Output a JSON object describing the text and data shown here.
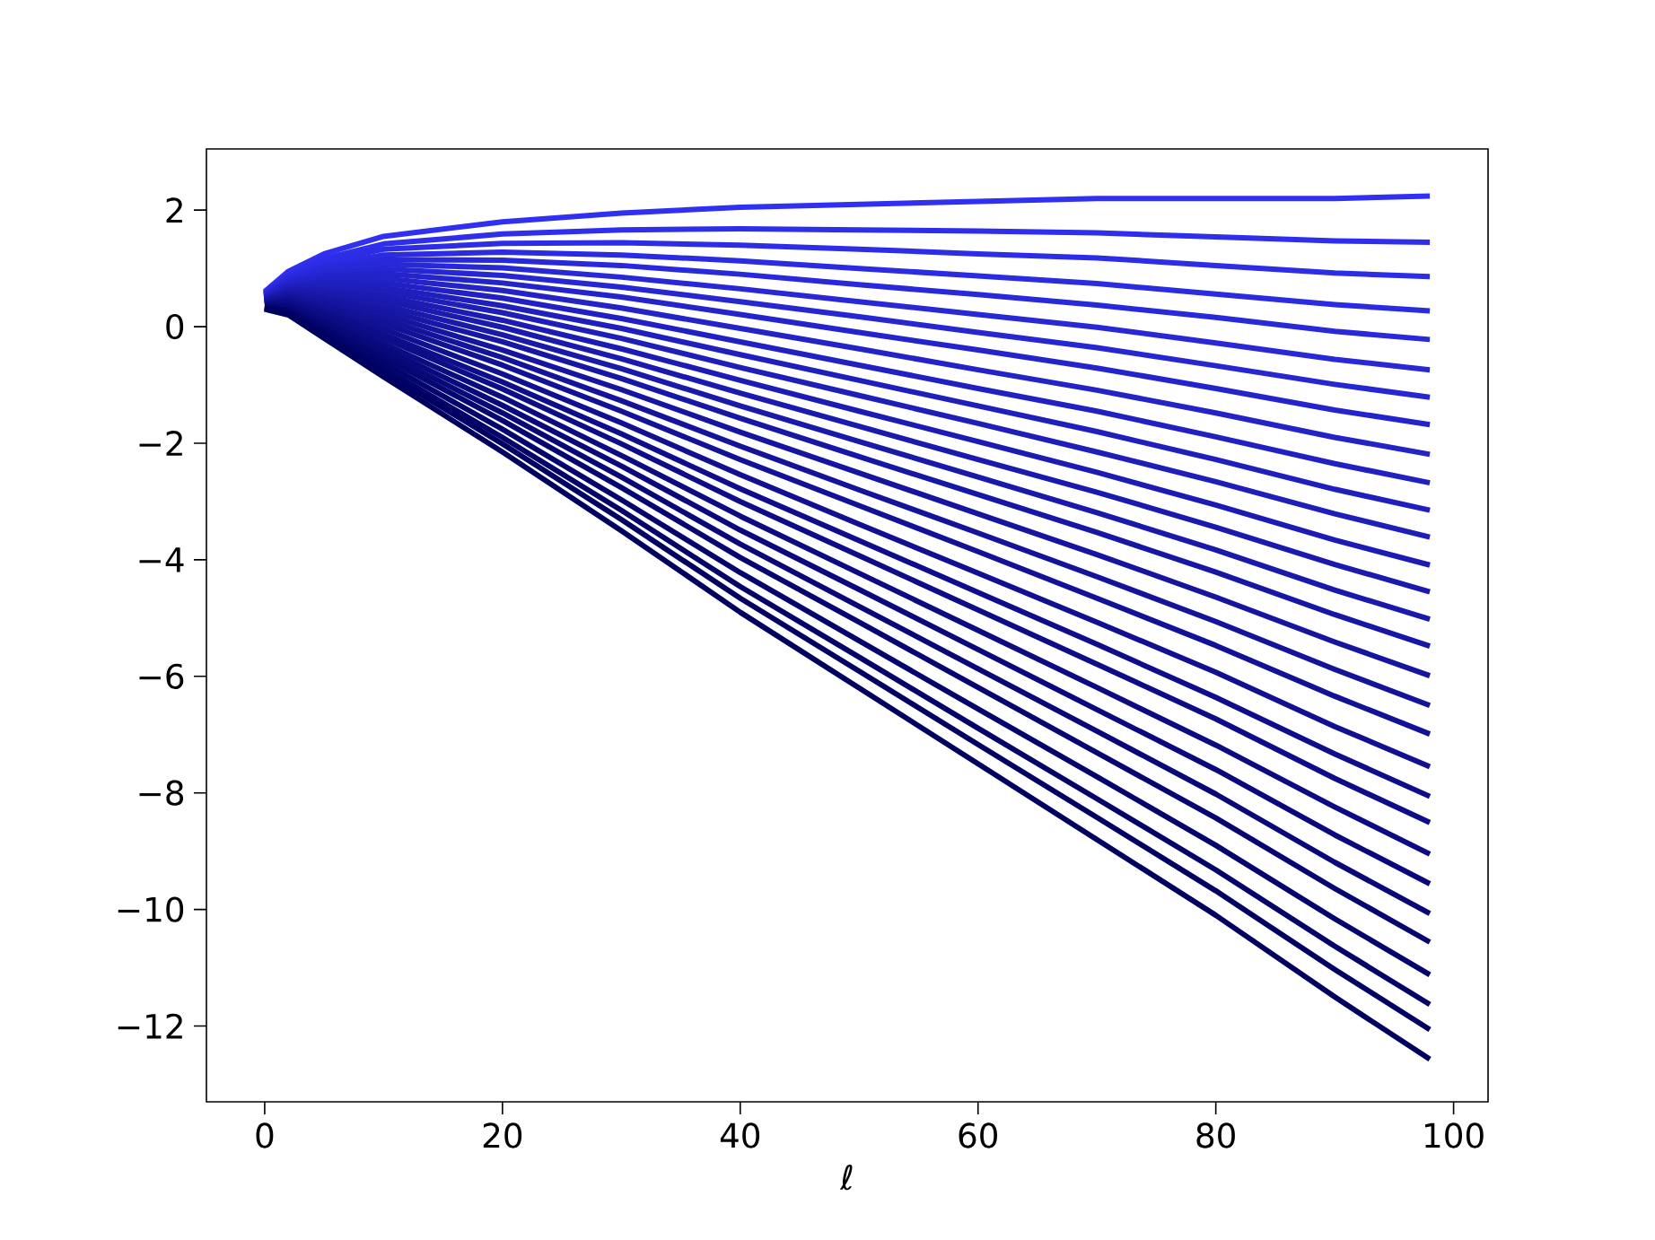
{
  "chart_data": {
    "type": "line",
    "xlabel": "ℓ",
    "x": [
      0,
      2,
      5,
      10,
      20,
      30,
      40,
      50,
      60,
      70,
      80,
      90,
      98
    ],
    "xlim": [
      -4.9,
      102.9
    ],
    "ylim": [
      -13.3,
      3.05
    ],
    "xticks": [
      0,
      20,
      40,
      60,
      80,
      100
    ],
    "yticks": [
      {
        "value": -12,
        "label": "−12"
      },
      {
        "value": -10,
        "label": "−10"
      },
      {
        "value": -8,
        "label": "−8"
      },
      {
        "value": -6,
        "label": "−6"
      },
      {
        "value": -4,
        "label": "−4"
      },
      {
        "value": -2,
        "label": "−2"
      },
      0,
      2
    ],
    "marker": "none",
    "line_style": "solid",
    "series": [
      {
        "color": "#3030f0",
        "values": [
          0.6,
          0.95,
          1.25,
          1.55,
          1.8,
          1.95,
          2.05,
          2.1,
          2.15,
          2.2,
          2.2,
          2.2,
          2.24
        ]
      },
      {
        "color": "#2e2eeb",
        "values": [
          0.58,
          0.91,
          1.17,
          1.42,
          1.59,
          1.66,
          1.68,
          1.66,
          1.64,
          1.61,
          1.54,
          1.47,
          1.45
        ]
      },
      {
        "color": "#2d2de6",
        "values": [
          0.57,
          0.88,
          1.12,
          1.33,
          1.43,
          1.44,
          1.4,
          1.33,
          1.25,
          1.18,
          1.05,
          0.92,
          0.86
        ]
      },
      {
        "color": "#2b2be1",
        "values": [
          0.56,
          0.85,
          1.06,
          1.23,
          1.28,
          1.23,
          1.13,
          1.0,
          0.87,
          0.74,
          0.56,
          0.38,
          0.27
        ]
      },
      {
        "color": "#2929dc",
        "values": [
          0.55,
          0.83,
          1.01,
          1.15,
          1.14,
          1.05,
          0.9,
          0.72,
          0.55,
          0.37,
          0.16,
          -0.08,
          -0.22
        ]
      },
      {
        "color": "#2828d7",
        "values": [
          0.54,
          0.8,
          0.96,
          1.07,
          1.01,
          0.85,
          0.65,
          0.43,
          0.21,
          -0.01,
          -0.28,
          -0.56,
          -0.74
        ]
      },
      {
        "color": "#2626d2",
        "values": [
          0.53,
          0.78,
          0.91,
          0.99,
          0.88,
          0.68,
          0.43,
          0.17,
          -0.1,
          -0.36,
          -0.67,
          -0.99,
          -1.21
        ]
      },
      {
        "color": "#2424cd",
        "values": [
          0.52,
          0.75,
          0.87,
          0.91,
          0.75,
          0.51,
          0.21,
          -0.1,
          -0.4,
          -0.71,
          -1.06,
          -1.43,
          -1.68
        ]
      },
      {
        "color": "#2323c8",
        "values": [
          0.51,
          0.73,
          0.82,
          0.83,
          0.62,
          0.32,
          -0.03,
          -0.38,
          -0.74,
          -1.09,
          -1.48,
          -1.9,
          -2.19
        ]
      },
      {
        "color": "#2121c3",
        "values": [
          0.5,
          0.7,
          0.77,
          0.75,
          0.49,
          0.14,
          -0.26,
          -0.66,
          -1.06,
          -1.45,
          -1.89,
          -2.35,
          -2.68
        ]
      },
      {
        "color": "#1f1fbe",
        "values": [
          0.49,
          0.68,
          0.72,
          0.67,
          0.36,
          -0.03,
          -0.48,
          -0.92,
          -1.36,
          -1.8,
          -2.28,
          -2.79,
          -3.15
        ]
      },
      {
        "color": "#1e1eb9",
        "values": [
          0.48,
          0.65,
          0.68,
          0.6,
          0.24,
          -0.2,
          -0.7,
          -1.18,
          -1.66,
          -2.15,
          -2.66,
          -3.21,
          -3.61
        ]
      },
      {
        "color": "#1c1cb4",
        "values": [
          0.47,
          0.63,
          0.63,
          0.52,
          0.11,
          -0.38,
          -0.92,
          -1.45,
          -1.97,
          -2.5,
          -3.06,
          -3.66,
          -4.09
        ]
      },
      {
        "color": "#1a1aaf",
        "values": [
          0.46,
          0.61,
          0.59,
          0.45,
          -0.01,
          -0.55,
          -1.14,
          -1.71,
          -2.28,
          -2.84,
          -3.44,
          -4.08,
          -4.55
        ]
      },
      {
        "color": "#1919aa",
        "values": [
          0.45,
          0.58,
          0.54,
          0.37,
          -0.14,
          -0.72,
          -1.36,
          -1.97,
          -2.58,
          -3.19,
          -3.83,
          -4.52,
          -5.02
        ]
      },
      {
        "color": "#1717a5",
        "values": [
          0.44,
          0.56,
          0.49,
          0.29,
          -0.26,
          -0.89,
          -1.57,
          -2.23,
          -2.88,
          -3.53,
          -4.21,
          -4.94,
          -5.48
        ]
      },
      {
        "color": "#1515a0",
        "values": [
          0.43,
          0.53,
          0.44,
          0.21,
          -0.4,
          -1.08,
          -1.81,
          -2.51,
          -3.21,
          -3.91,
          -4.64,
          -5.41,
          -5.99
        ]
      },
      {
        "color": "#14149b",
        "values": [
          0.42,
          0.51,
          0.39,
          0.13,
          -0.53,
          -1.27,
          -2.05,
          -2.8,
          -3.54,
          -4.29,
          -5.06,
          -5.88,
          -6.5
        ]
      },
      {
        "color": "#121296",
        "values": [
          0.41,
          0.48,
          0.35,
          0.05,
          -0.66,
          -1.45,
          -2.28,
          -3.07,
          -3.86,
          -4.66,
          -5.47,
          -6.34,
          -6.99
        ]
      },
      {
        "color": "#101091",
        "values": [
          0.4,
          0.45,
          0.29,
          -0.04,
          -0.81,
          -1.65,
          -2.54,
          -3.39,
          -4.23,
          -5.07,
          -5.93,
          -6.86,
          -7.55
        ]
      },
      {
        "color": "#0e0e8c",
        "values": [
          0.39,
          0.43,
          0.24,
          -0.13,
          -0.95,
          -1.84,
          -2.78,
          -3.67,
          -4.56,
          -5.45,
          -6.36,
          -7.33,
          -8.06
        ]
      },
      {
        "color": "#0d0d87",
        "values": [
          0.38,
          0.41,
          0.2,
          -0.2,
          -1.07,
          -2.01,
          -3.0,
          -3.93,
          -4.86,
          -5.79,
          -6.73,
          -7.75,
          -8.51
        ]
      },
      {
        "color": "#0b0b82",
        "values": [
          0.37,
          0.38,
          0.15,
          -0.29,
          -1.21,
          -2.21,
          -3.25,
          -4.23,
          -5.21,
          -6.19,
          -7.18,
          -8.24,
          -9.05
        ]
      },
      {
        "color": "#09097d",
        "values": [
          0.36,
          0.35,
          0.09,
          -0.37,
          -1.35,
          -2.39,
          -3.49,
          -4.51,
          -5.54,
          -6.57,
          -7.6,
          -8.72,
          -9.56
        ]
      },
      {
        "color": "#080878",
        "values": [
          0.35,
          0.33,
          0.04,
          -0.45,
          -1.48,
          -2.58,
          -3.73,
          -4.8,
          -5.87,
          -6.94,
          -8.02,
          -9.19,
          -10.07
        ]
      },
      {
        "color": "#060673",
        "values": [
          0.34,
          0.3,
          0.0,
          -0.53,
          -1.61,
          -2.76,
          -3.96,
          -5.07,
          -6.19,
          -7.31,
          -8.43,
          -9.64,
          -10.56
        ]
      },
      {
        "color": "#04046e",
        "values": [
          0.33,
          0.27,
          -0.06,
          -0.62,
          -1.76,
          -2.97,
          -4.22,
          -5.39,
          -6.56,
          -7.72,
          -8.9,
          -10.16,
          -11.12
        ]
      },
      {
        "color": "#030369",
        "values": [
          0.32,
          0.25,
          -0.11,
          -0.71,
          -1.9,
          -3.15,
          -4.46,
          -5.67,
          -6.89,
          -8.1,
          -9.32,
          -10.63,
          -11.63
        ]
      },
      {
        "color": "#010164",
        "values": [
          0.31,
          0.23,
          -0.15,
          -0.78,
          -2.01,
          -3.31,
          -4.66,
          -5.91,
          -7.17,
          -8.42,
          -9.68,
          -11.03,
          -12.06
        ]
      },
      {
        "color": "#000060",
        "values": [
          0.3,
          0.2,
          -0.2,
          -0.86,
          -2.15,
          -3.5,
          -4.9,
          -6.2,
          -7.5,
          -8.8,
          -10.1,
          -11.5,
          -12.57
        ]
      }
    ]
  }
}
